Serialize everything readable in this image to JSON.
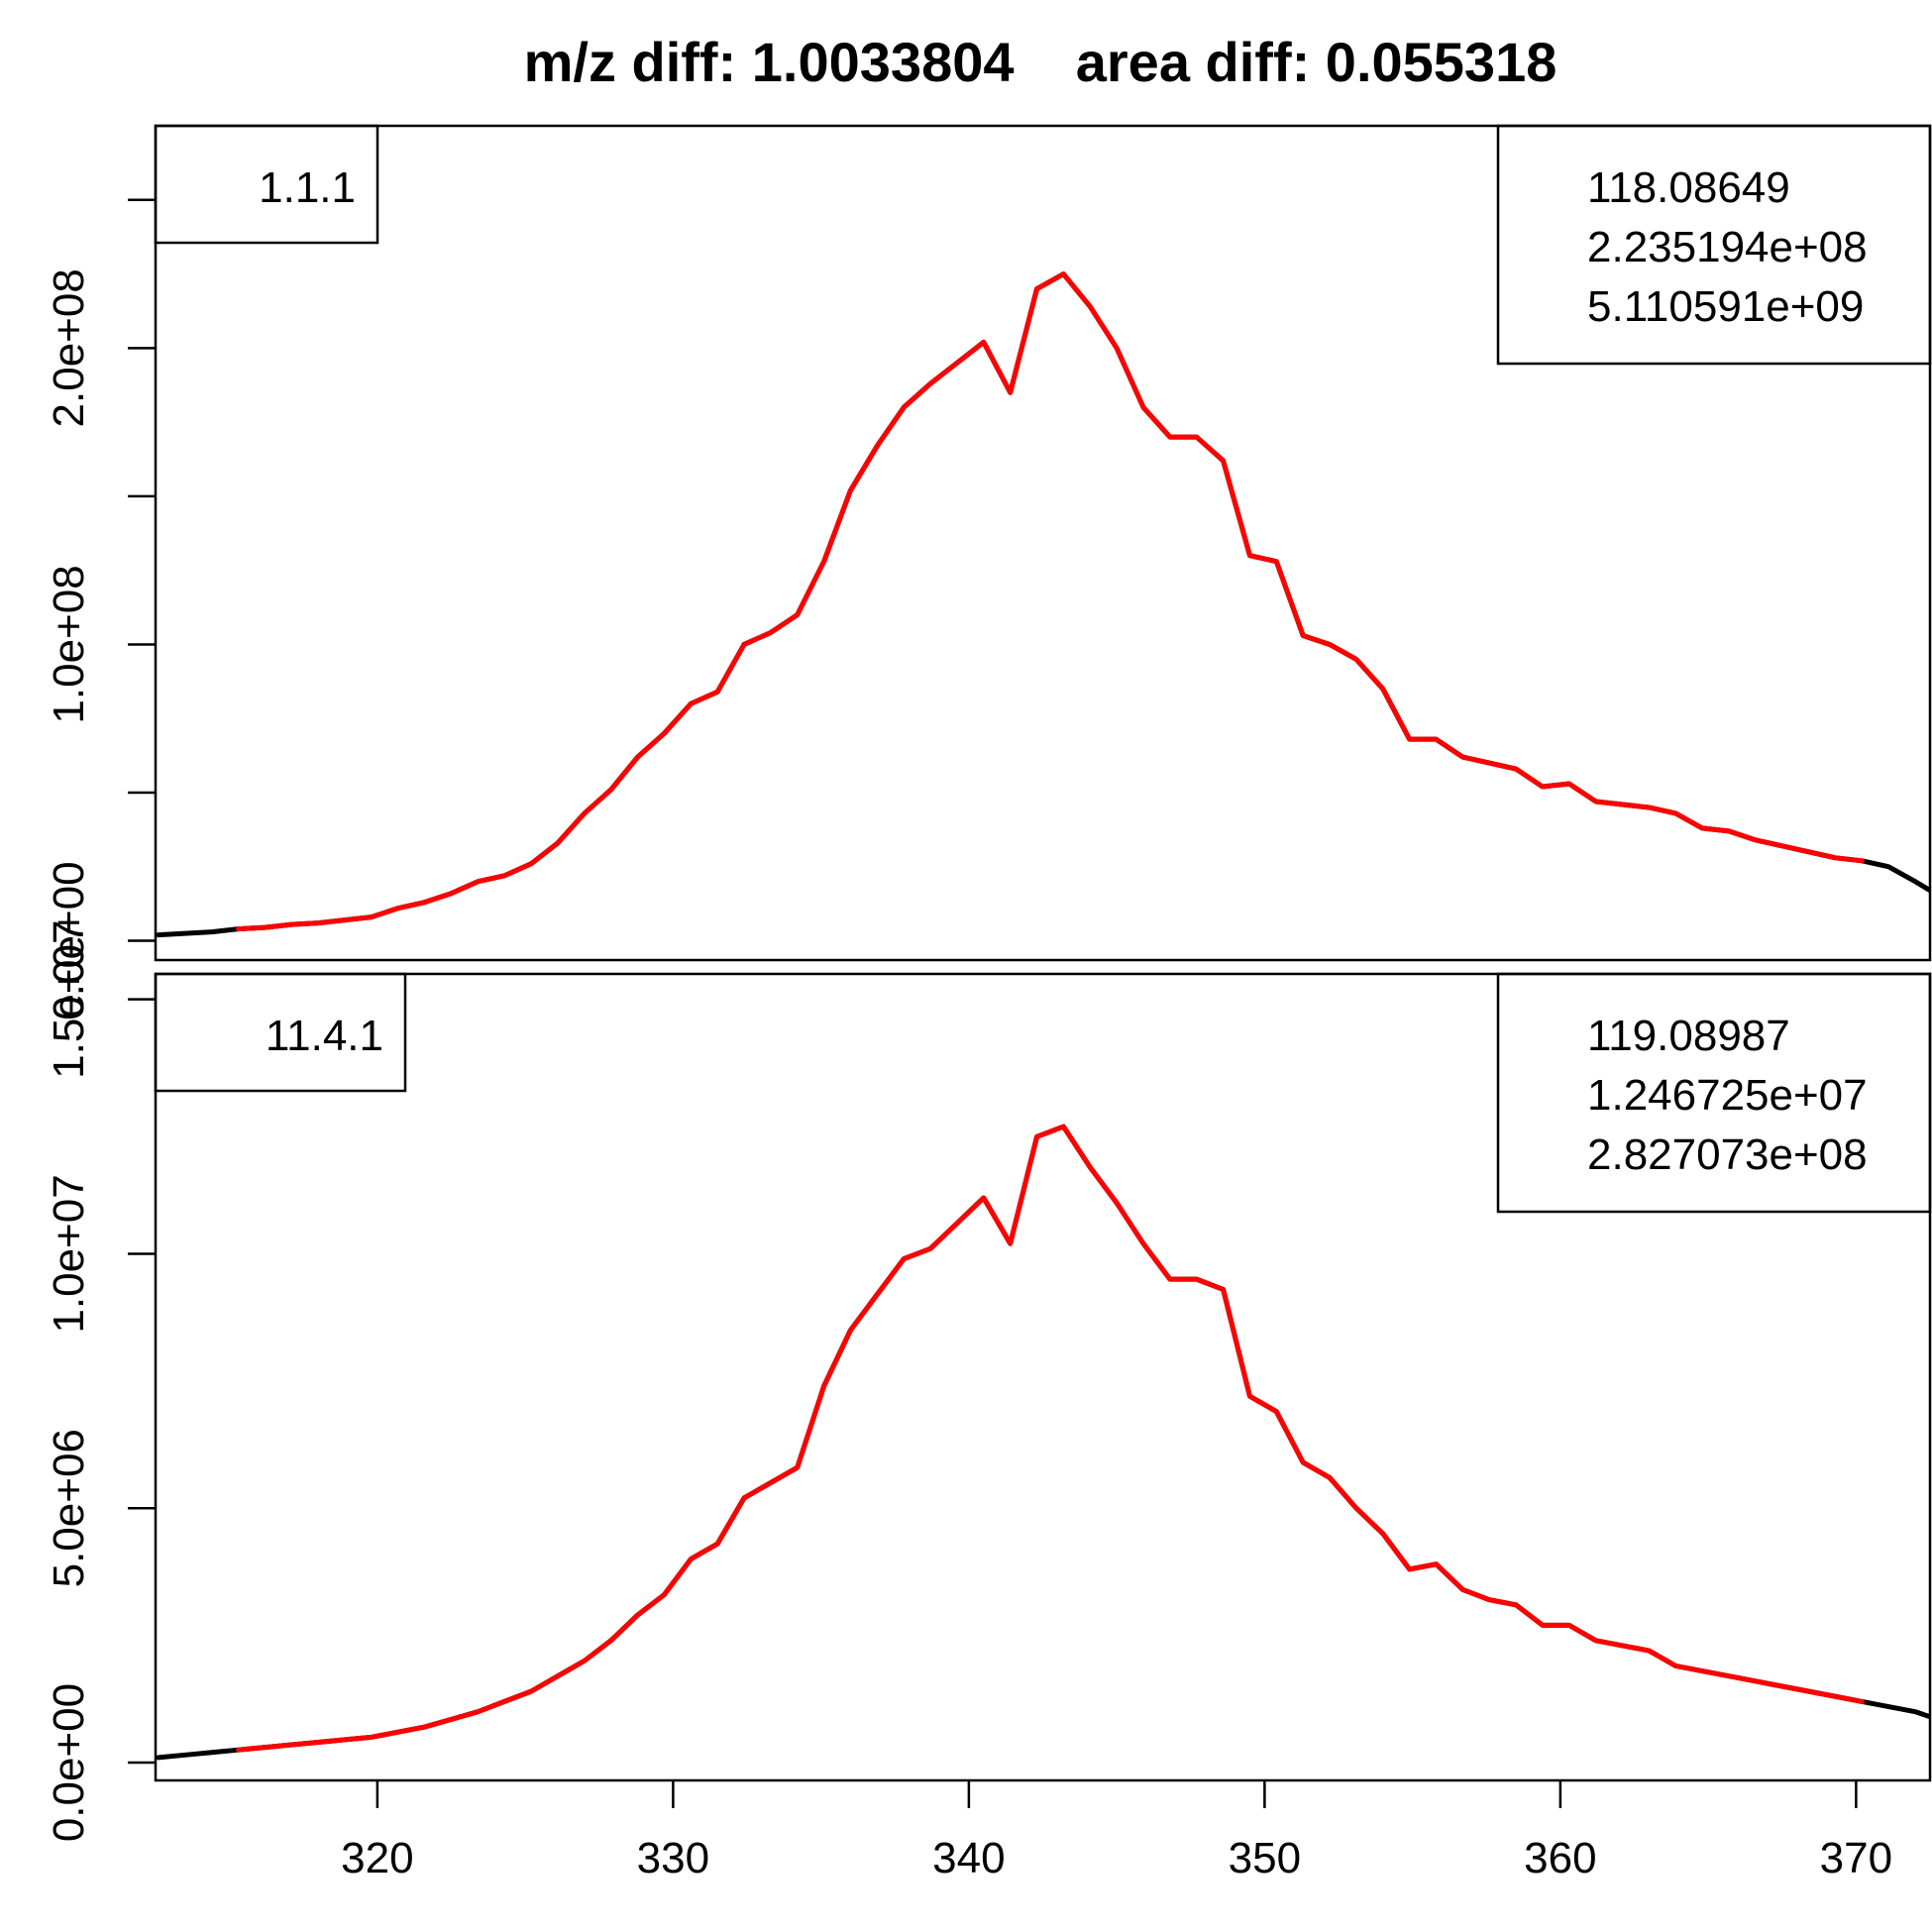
{
  "chart_data": {
    "type": "line",
    "title": "m/z diff: 1.0033804    area diff: 0.055318",
    "xlim": [
      312.5,
      372.5
    ],
    "x_ticks": [
      320,
      330,
      340,
      350,
      360,
      370
    ],
    "x_tick_labels": [
      "320",
      "330",
      "340",
      "350",
      "360",
      "370"
    ],
    "panels": [
      {
        "label": "1.1.1",
        "legend": [
          "118.08649",
          "2.235194e+08",
          "5.110591e+09"
        ],
        "ylim": [
          -6500000.0,
          275000000.0
        ],
        "y_ticks": [
          0,
          50000000.0,
          100000000.0,
          150000000.0,
          200000000.0,
          250000000.0
        ],
        "y_tick_labels": [
          "0.0e+00",
          "",
          "1.0e+08",
          "",
          "2.0e+08",
          ""
        ],
        "x": [
          312.6,
          313.5,
          314.4,
          315.3,
          316.2,
          317.1,
          318.0,
          318.9,
          319.8,
          320.7,
          321.6,
          322.5,
          323.4,
          324.3,
          325.2,
          326.1,
          327.0,
          327.9,
          328.8,
          329.7,
          330.6,
          331.5,
          332.4,
          333.3,
          334.2,
          335.1,
          336.0,
          336.9,
          337.8,
          338.7,
          339.6,
          340.5,
          341.4,
          342.3,
          343.2,
          344.1,
          345.0,
          345.9,
          346.8,
          347.7,
          348.6,
          349.5,
          350.4,
          351.3,
          352.2,
          353.1,
          354.0,
          354.9,
          355.8,
          356.7,
          357.6,
          358.5,
          359.4,
          360.3,
          361.2,
          362.1,
          363.0,
          363.9,
          364.8,
          365.7,
          366.6,
          367.5,
          368.4,
          369.3,
          370.2,
          371.1,
          372.0,
          372.5
        ],
        "y": [
          2000000.0,
          2500000.0,
          3000000.0,
          4000000.0,
          4500000.0,
          5500000.0,
          6000000.0,
          7000000.0,
          8000000.0,
          11000000.0,
          13000000.0,
          16000000.0,
          20000000.0,
          22000000.0,
          26000000.0,
          33000000.0,
          43000000.0,
          51000000.0,
          62000000.0,
          70000000.0,
          80000000.0,
          84000000.0,
          100000000.0,
          104000000.0,
          110000000.0,
          128000000.0,
          152000000.0,
          167000000.0,
          180000000.0,
          188000000.0,
          195000000.0,
          202000000.0,
          185000000.0,
          220000000.0,
          225000000.0,
          214000000.0,
          200000000.0,
          180000000.0,
          170000000.0,
          170000000.0,
          162000000.0,
          130000000.0,
          128000000.0,
          103000000.0,
          100000000.0,
          95000000.0,
          85000000.0,
          68000000.0,
          68000000.0,
          62000000.0,
          60000000.0,
          58000000.0,
          52000000.0,
          53000000.0,
          47000000.0,
          46000000.0,
          45000000.0,
          43000000.0,
          38000000.0,
          37000000.0,
          34000000.0,
          32000000.0,
          30000000.0,
          28000000.0,
          27000000.0,
          25000000.0,
          20000000.0,
          17000000.0
        ],
        "highlight_range": [
          315.0,
          370.2
        ]
      },
      {
        "label": "11.4.1",
        "legend": [
          "119.08987",
          "1.246725e+07",
          "2.827073e+08"
        ],
        "ylim": [
          -350000.0,
          15500000.0
        ],
        "y_ticks": [
          0,
          5000000.0,
          10000000.0,
          15000000.0
        ],
        "y_tick_labels": [
          "0.0e+00",
          "5.0e+06",
          "1.0e+07",
          "1.5e+07"
        ],
        "x": [
          312.6,
          313.5,
          314.4,
          315.3,
          316.2,
          317.1,
          318.0,
          318.9,
          319.8,
          320.7,
          321.6,
          322.5,
          323.4,
          324.3,
          325.2,
          326.1,
          327.0,
          327.9,
          328.8,
          329.7,
          330.6,
          331.5,
          332.4,
          333.3,
          334.2,
          335.1,
          336.0,
          336.9,
          337.8,
          338.7,
          339.6,
          340.5,
          341.4,
          342.3,
          343.2,
          344.1,
          345.0,
          345.9,
          346.8,
          347.7,
          348.6,
          349.5,
          350.4,
          351.3,
          352.2,
          353.1,
          354.0,
          354.9,
          355.8,
          356.7,
          357.6,
          358.5,
          359.4,
          360.3,
          361.2,
          362.1,
          363.0,
          363.9,
          364.8,
          365.7,
          366.6,
          367.5,
          368.4,
          369.3,
          370.2,
          371.1,
          372.0,
          372.5
        ],
        "y": [
          100000.0,
          150000.0,
          200000.0,
          250000.0,
          300000.0,
          350000.0,
          400000.0,
          450000.0,
          500000.0,
          600000.0,
          700000.0,
          850000.0,
          1000000.0,
          1200000.0,
          1400000.0,
          1700000.0,
          2000000.0,
          2400000.0,
          2900000.0,
          3300000.0,
          4000000.0,
          4300000.0,
          5200000.0,
          5500000.0,
          5800000.0,
          7400000.0,
          8500000.0,
          9200000.0,
          9900000.0,
          10100000.0,
          10600000.0,
          11100000.0,
          10200000.0,
          12300000.0,
          12500000.0,
          11700000.0,
          11000000.0,
          10200000.0,
          9500000.0,
          9500000.0,
          9300000.0,
          7200000.0,
          6900000.0,
          5900000.0,
          5600000.0,
          5000000.0,
          4500000.0,
          3800000.0,
          3900000.0,
          3400000.0,
          3200000.0,
          3100000.0,
          2700000.0,
          2700000.0,
          2400000.0,
          2300000.0,
          2200000.0,
          1900000.0,
          1800000.0,
          1700000.0,
          1600000.0,
          1500000.0,
          1400000.0,
          1300000.0,
          1200000.0,
          1100000.0,
          1000000.0,
          900000.0
        ],
        "highlight_range": [
          315.0,
          370.2
        ]
      }
    ],
    "colors": {
      "line": "#000000",
      "highlight": "#ff0000"
    }
  }
}
